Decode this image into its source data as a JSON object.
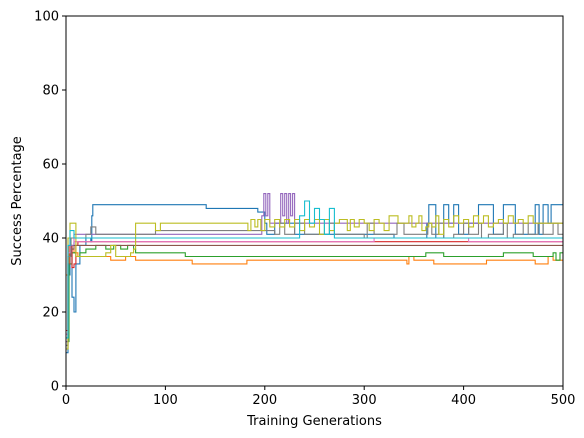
{
  "chart_data": {
    "type": "line",
    "xlabel": "Training Generations",
    "ylabel": "Success Percentage",
    "xlim": [
      0,
      500
    ],
    "ylim": [
      0,
      100
    ],
    "xticks": [
      "0",
      "100",
      "200",
      "300",
      "400",
      "500"
    ],
    "yticks": [
      "0",
      "20",
      "40",
      "60",
      "80",
      "100"
    ],
    "grid": false,
    "legend": "none",
    "series": [
      {
        "color": "#1f77b4",
        "points": [
          [
            0,
            9
          ],
          [
            2,
            30
          ],
          [
            4,
            38
          ],
          [
            6,
            24
          ],
          [
            8,
            20
          ],
          [
            10,
            33
          ],
          [
            14,
            38
          ],
          [
            20,
            40
          ],
          [
            25,
            39
          ],
          [
            26,
            46
          ],
          [
            27,
            49
          ],
          [
            30,
            49
          ],
          [
            140,
            49
          ],
          [
            141,
            48
          ],
          [
            190,
            48
          ],
          [
            193,
            47
          ],
          [
            200,
            44
          ],
          [
            202,
            41
          ],
          [
            210,
            44
          ],
          [
            230,
            41
          ],
          [
            300,
            41
          ],
          [
            330,
            40
          ],
          [
            360,
            40
          ],
          [
            363,
            44
          ],
          [
            365,
            49
          ],
          [
            370,
            49
          ],
          [
            372,
            40
          ],
          [
            380,
            49
          ],
          [
            385,
            44
          ],
          [
            390,
            49
          ],
          [
            395,
            41
          ],
          [
            402,
            41
          ],
          [
            405,
            44
          ],
          [
            412,
            44
          ],
          [
            415,
            49
          ],
          [
            428,
            49
          ],
          [
            430,
            41
          ],
          [
            440,
            49
          ],
          [
            450,
            49
          ],
          [
            452,
            41
          ],
          [
            470,
            41
          ],
          [
            472,
            49
          ],
          [
            476,
            41
          ],
          [
            480,
            49
          ],
          [
            485,
            44
          ],
          [
            488,
            49
          ],
          [
            500,
            49
          ]
        ]
      },
      {
        "color": "#ff7f0e",
        "points": [
          [
            0,
            30
          ],
          [
            3,
            38
          ],
          [
            6,
            37
          ],
          [
            8,
            36
          ],
          [
            12,
            35
          ],
          [
            40,
            35
          ],
          [
            45,
            34
          ],
          [
            55,
            34
          ],
          [
            60,
            35
          ],
          [
            68,
            35
          ],
          [
            70,
            34
          ],
          [
            125,
            34
          ],
          [
            127,
            33
          ],
          [
            180,
            33
          ],
          [
            182,
            34
          ],
          [
            280,
            34
          ],
          [
            290,
            34
          ],
          [
            340,
            34
          ],
          [
            343,
            33
          ],
          [
            345,
            35
          ],
          [
            350,
            34
          ],
          [
            368,
            34
          ],
          [
            370,
            33
          ],
          [
            420,
            33
          ],
          [
            423,
            34
          ],
          [
            470,
            34
          ],
          [
            472,
            33
          ],
          [
            480,
            33
          ],
          [
            485,
            35
          ],
          [
            490,
            34
          ],
          [
            500,
            34
          ]
        ]
      },
      {
        "color": "#2ca02c",
        "points": [
          [
            0,
            12
          ],
          [
            3,
            33
          ],
          [
            6,
            36
          ],
          [
            10,
            35
          ],
          [
            14,
            36
          ],
          [
            20,
            37
          ],
          [
            30,
            38
          ],
          [
            40,
            37
          ],
          [
            48,
            38
          ],
          [
            55,
            37
          ],
          [
            62,
            38
          ],
          [
            68,
            37
          ],
          [
            70,
            36
          ],
          [
            90,
            36
          ],
          [
            120,
            35
          ],
          [
            200,
            35
          ],
          [
            300,
            35
          ],
          [
            350,
            35
          ],
          [
            362,
            36
          ],
          [
            380,
            35
          ],
          [
            420,
            35
          ],
          [
            440,
            36
          ],
          [
            470,
            35
          ],
          [
            490,
            36
          ],
          [
            493,
            34
          ],
          [
            497,
            36
          ],
          [
            500,
            36
          ]
        ]
      },
      {
        "color": "#d62728",
        "points": [
          [
            0,
            15
          ],
          [
            2,
            35
          ],
          [
            4,
            38
          ],
          [
            6,
            32
          ],
          [
            8,
            33
          ],
          [
            10,
            38
          ],
          [
            12,
            39
          ],
          [
            20,
            39
          ],
          [
            500,
            39
          ]
        ]
      },
      {
        "color": "#9467bd",
        "points": [
          [
            0,
            12
          ],
          [
            2,
            40
          ],
          [
            5,
            38
          ],
          [
            8,
            41
          ],
          [
            20,
            41
          ],
          [
            195,
            41
          ],
          [
            197,
            46
          ],
          [
            199,
            52
          ],
          [
            201,
            46
          ],
          [
            203,
            52
          ],
          [
            205,
            44
          ],
          [
            214,
            44
          ],
          [
            216,
            52
          ],
          [
            218,
            46
          ],
          [
            220,
            52
          ],
          [
            222,
            44
          ],
          [
            224,
            52
          ],
          [
            226,
            46
          ],
          [
            228,
            52
          ],
          [
            230,
            44
          ],
          [
            500,
            44
          ]
        ]
      },
      {
        "color": "#8c564b",
        "points": [
          [
            0,
            10
          ],
          [
            2,
            33
          ],
          [
            4,
            37
          ],
          [
            8,
            38
          ],
          [
            20,
            38
          ],
          [
            500,
            38
          ]
        ]
      },
      {
        "color": "#e377c2",
        "points": [
          [
            0,
            14
          ],
          [
            2,
            36
          ],
          [
            4,
            40
          ],
          [
            8,
            39
          ],
          [
            20,
            39
          ],
          [
            300,
            39
          ],
          [
            310,
            40
          ],
          [
            400,
            40
          ],
          [
            405,
            39
          ],
          [
            500,
            39
          ]
        ]
      },
      {
        "color": "#7f7f7f",
        "points": [
          [
            0,
            11
          ],
          [
            2,
            35
          ],
          [
            5,
            40
          ],
          [
            10,
            40
          ],
          [
            20,
            41
          ],
          [
            25,
            43
          ],
          [
            30,
            41
          ],
          [
            80,
            41
          ],
          [
            90,
            42
          ],
          [
            150,
            42
          ],
          [
            200,
            42
          ],
          [
            210,
            41
          ],
          [
            215,
            44
          ],
          [
            220,
            41
          ],
          [
            230,
            44
          ],
          [
            240,
            41
          ],
          [
            260,
            41
          ],
          [
            265,
            44
          ],
          [
            270,
            41
          ],
          [
            295,
            41
          ],
          [
            300,
            40
          ],
          [
            303,
            44
          ],
          [
            310,
            41
          ],
          [
            330,
            41
          ],
          [
            333,
            44
          ],
          [
            340,
            41
          ],
          [
            360,
            41
          ],
          [
            364,
            44
          ],
          [
            368,
            41
          ],
          [
            375,
            44
          ],
          [
            380,
            40
          ],
          [
            390,
            41
          ],
          [
            400,
            44
          ],
          [
            405,
            41
          ],
          [
            415,
            44
          ],
          [
            418,
            40
          ],
          [
            425,
            41
          ],
          [
            440,
            44
          ],
          [
            444,
            40
          ],
          [
            450,
            41
          ],
          [
            460,
            44
          ],
          [
            465,
            41
          ],
          [
            475,
            44
          ],
          [
            480,
            41
          ],
          [
            490,
            44
          ],
          [
            495,
            41
          ],
          [
            500,
            41
          ]
        ]
      },
      {
        "color": "#bcbd22",
        "points": [
          [
            0,
            10
          ],
          [
            2,
            40
          ],
          [
            4,
            44
          ],
          [
            8,
            44
          ],
          [
            10,
            35
          ],
          [
            30,
            35
          ],
          [
            40,
            36
          ],
          [
            45,
            38
          ],
          [
            50,
            35
          ],
          [
            65,
            36
          ],
          [
            68,
            37
          ],
          [
            70,
            44
          ],
          [
            88,
            44
          ],
          [
            90,
            42
          ],
          [
            95,
            44
          ],
          [
            180,
            44
          ],
          [
            183,
            42
          ],
          [
            186,
            45
          ],
          [
            190,
            43
          ],
          [
            193,
            45
          ],
          [
            196,
            42
          ],
          [
            200,
            45
          ],
          [
            205,
            43
          ],
          [
            210,
            45
          ],
          [
            215,
            43
          ],
          [
            220,
            45
          ],
          [
            225,
            43
          ],
          [
            230,
            45
          ],
          [
            235,
            42
          ],
          [
            240,
            45
          ],
          [
            245,
            43
          ],
          [
            250,
            45
          ],
          [
            255,
            41
          ],
          [
            260,
            45
          ],
          [
            265,
            42
          ],
          [
            270,
            44
          ],
          [
            275,
            45
          ],
          [
            280,
            45
          ],
          [
            283,
            42
          ],
          [
            286,
            45
          ],
          [
            290,
            43
          ],
          [
            295,
            45
          ],
          [
            300,
            44
          ],
          [
            305,
            42
          ],
          [
            310,
            45
          ],
          [
            315,
            44
          ],
          [
            320,
            42
          ],
          [
            325,
            46
          ],
          [
            330,
            46
          ],
          [
            334,
            44
          ],
          [
            340,
            44
          ],
          [
            345,
            46
          ],
          [
            348,
            43
          ],
          [
            352,
            44
          ],
          [
            355,
            46
          ],
          [
            358,
            42
          ],
          [
            362,
            43
          ],
          [
            365,
            44
          ],
          [
            368,
            43
          ],
          [
            372,
            46
          ],
          [
            375,
            41
          ],
          [
            380,
            45
          ],
          [
            385,
            43
          ],
          [
            390,
            46
          ],
          [
            395,
            44
          ],
          [
            400,
            45
          ],
          [
            405,
            43
          ],
          [
            410,
            46
          ],
          [
            415,
            44
          ],
          [
            420,
            46
          ],
          [
            425,
            43
          ],
          [
            430,
            44
          ],
          [
            435,
            45
          ],
          [
            440,
            44
          ],
          [
            445,
            46
          ],
          [
            450,
            44
          ],
          [
            455,
            45
          ],
          [
            460,
            44
          ],
          [
            465,
            46
          ],
          [
            470,
            44
          ],
          [
            480,
            44
          ],
          [
            500,
            44
          ]
        ]
      },
      {
        "color": "#17becf",
        "points": [
          [
            0,
            13
          ],
          [
            2,
            38
          ],
          [
            4,
            42
          ],
          [
            8,
            40
          ],
          [
            20,
            40
          ],
          [
            230,
            40
          ],
          [
            235,
            46
          ],
          [
            240,
            50
          ],
          [
            245,
            44
          ],
          [
            250,
            48
          ],
          [
            255,
            45
          ],
          [
            260,
            41
          ],
          [
            265,
            48
          ],
          [
            270,
            40
          ],
          [
            500,
            40
          ]
        ]
      }
    ]
  }
}
